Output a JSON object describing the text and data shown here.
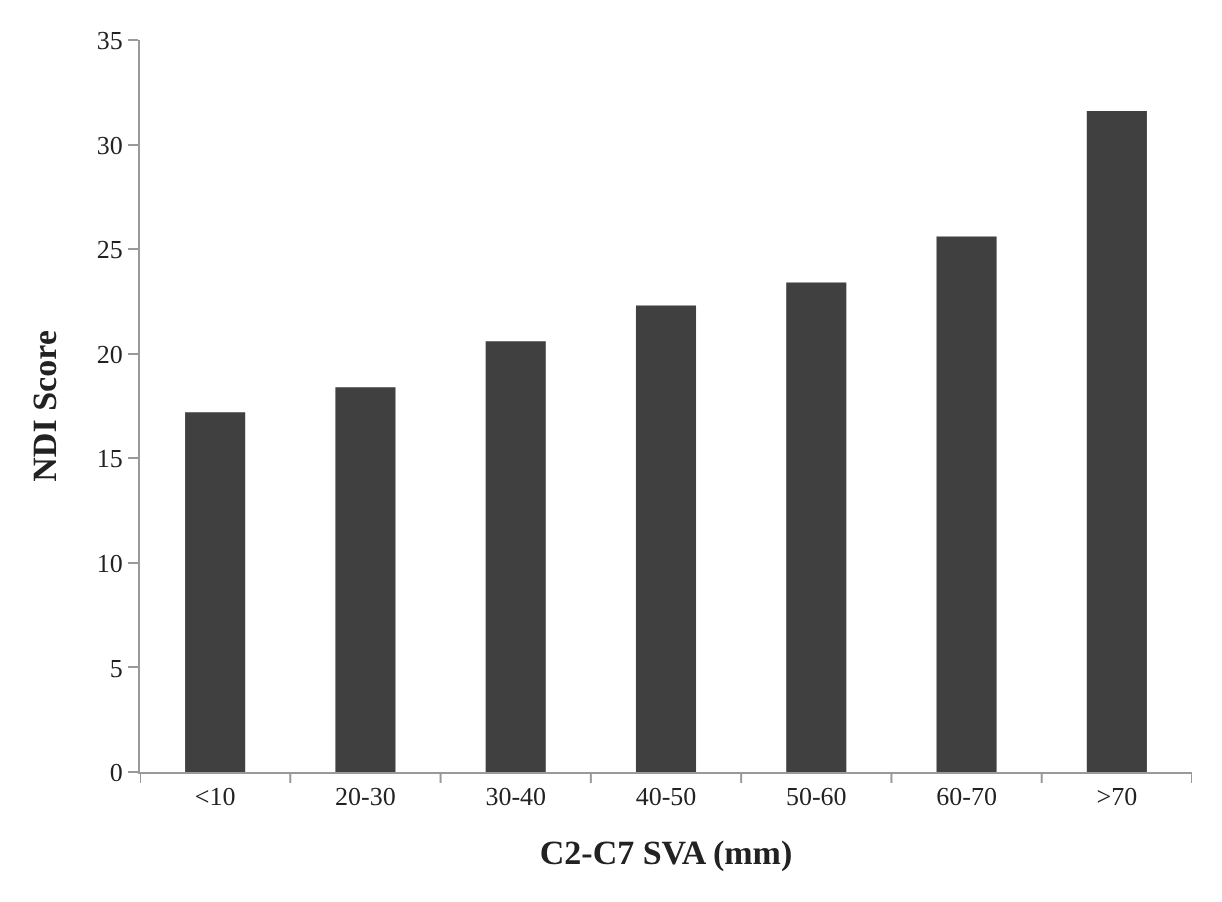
{
  "chart_data": {
    "type": "bar",
    "xlabel": "C2-C7 SVA (mm)",
    "ylabel": "NDI Score",
    "categories": [
      "<10",
      "20-30",
      "30-40",
      "40-50",
      "50-60",
      "60-70",
      ">70"
    ],
    "values": [
      17.2,
      18.4,
      20.6,
      22.3,
      23.4,
      25.6,
      31.6
    ],
    "color": "#404040",
    "ylim": [
      0,
      35
    ],
    "yticks": [
      0,
      5,
      10,
      15,
      20,
      25,
      30,
      35
    ],
    "legend": false
  }
}
